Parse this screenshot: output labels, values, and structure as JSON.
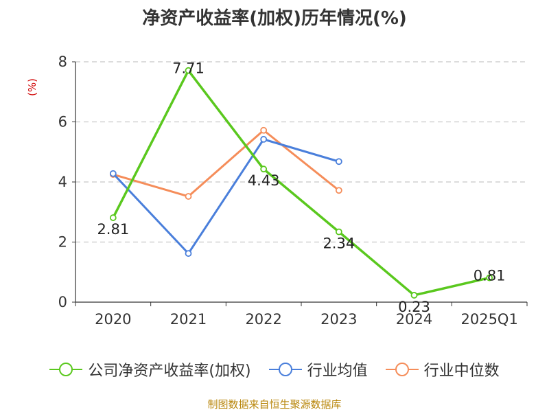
{
  "source": "制图数据来自恒生聚源数据库",
  "chart_data": {
    "type": "line",
    "title": "净资产收益率(加权)历年情况(%)",
    "ylabel": "(%)",
    "xlabel": "",
    "categories": [
      "2020",
      "2021",
      "2022",
      "2023",
      "2024",
      "2025Q1"
    ],
    "ylim": [
      0,
      8
    ],
    "yticks": [
      0,
      2,
      4,
      6,
      8
    ],
    "grid": true,
    "legend_position": "bottom",
    "series": [
      {
        "name": "公司净资产收益率(加权)",
        "color": "#5ac81e",
        "values": [
          2.81,
          7.71,
          4.43,
          2.34,
          0.23,
          0.81
        ],
        "labels": [
          "2.81",
          "7.71",
          "4.43",
          "2.34",
          "0.23",
          "0.81"
        ]
      },
      {
        "name": "行业均值",
        "color": "#4a7fdb",
        "values": [
          4.28,
          1.62,
          5.42,
          4.68,
          null,
          null
        ]
      },
      {
        "name": "行业中位数",
        "color": "#f58d5a",
        "values": [
          4.25,
          3.52,
          5.72,
          3.72,
          null,
          null
        ]
      }
    ]
  }
}
